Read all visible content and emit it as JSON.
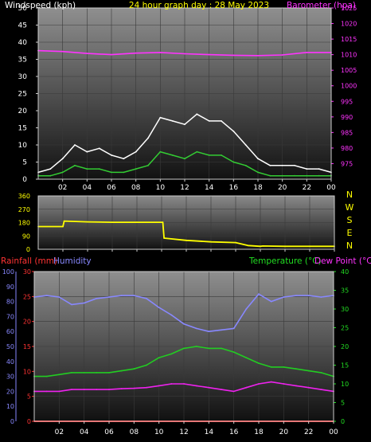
{
  "header": {
    "left_label": "Windspeed (kph)",
    "center_label": "24 hour graph day : 28 May 2023",
    "right_label": "Barometer (hpa)"
  },
  "bottom_header": {
    "rain_label": "Rainfall (mm)",
    "humidity_label": "Humidity",
    "temp_label": "Temperature (°C)",
    "dew_label": "Dew Point (°C)"
  },
  "colors": {
    "wind_gust": "#ffffff",
    "wind_avg": "#33cc33",
    "barometer": "#ff33ff",
    "direction": "#ffff00",
    "humidity": "#8888ff",
    "temperature": "#22cc22",
    "dewpoint": "#ee22ee",
    "rainfall": "#ff2222",
    "frame": "#cccccc"
  },
  "chart_data": [
    {
      "type": "line",
      "name": "wind-barometer",
      "hour_ticks": [
        "02",
        "04",
        "06",
        "08",
        "10",
        "12",
        "14",
        "16",
        "18",
        "20",
        "22",
        "00"
      ],
      "wind_axis": {
        "min": 0,
        "max": 50,
        "ticks": [
          "0",
          "5",
          "10",
          "15",
          "20",
          "25",
          "30",
          "35",
          "40",
          "45",
          "50"
        ]
      },
      "baro_axis": {
        "min": 970,
        "max": 1025,
        "ticks": [
          "975",
          "980",
          "985",
          "990",
          "995",
          "1000",
          "1005",
          "1010",
          "1015",
          "1020",
          "1025"
        ]
      },
      "series": [
        {
          "key": "wind_gust",
          "hours": [
            0,
            1,
            2,
            3,
            4,
            5,
            6,
            7,
            8,
            9,
            10,
            11,
            12,
            13,
            14,
            15,
            16,
            17,
            18,
            19,
            20,
            21,
            22,
            23,
            24
          ],
          "values": [
            2,
            3,
            6,
            10,
            8,
            9,
            7,
            6,
            8,
            12,
            18,
            17,
            16,
            19,
            17,
            17,
            14,
            10,
            6,
            4,
            4,
            4,
            3,
            3,
            2
          ]
        },
        {
          "key": "wind_avg",
          "hours": [
            0,
            1,
            2,
            3,
            4,
            5,
            6,
            7,
            8,
            9,
            10,
            11,
            12,
            13,
            14,
            15,
            16,
            17,
            18,
            19,
            20,
            21,
            22,
            23,
            24
          ],
          "values": [
            1,
            1,
            2,
            4,
            3,
            3,
            2,
            2,
            3,
            4,
            8,
            7,
            6,
            8,
            7,
            7,
            5,
            4,
            2,
            1,
            1,
            1,
            1,
            1,
            1
          ]
        },
        {
          "key": "barometer",
          "hours": [
            0,
            2,
            4,
            6,
            8,
            10,
            12,
            14,
            16,
            18,
            20,
            22,
            24
          ],
          "values": [
            1011.3,
            1011.0,
            1010.4,
            1010.0,
            1010.5,
            1010.7,
            1010.3,
            1010.0,
            1009.8,
            1009.7,
            1009.9,
            1010.7,
            1010.7
          ]
        }
      ]
    },
    {
      "type": "line",
      "name": "wind-direction",
      "hour_ticks": [
        "02",
        "04",
        "06",
        "08",
        "10",
        "12",
        "14",
        "16",
        "18",
        "20",
        "22",
        "00"
      ],
      "dir_axis": {
        "min": 0,
        "max": 360,
        "ticks": [
          "0",
          "90",
          "180",
          "270",
          "360"
        ]
      },
      "compass": [
        "N",
        "W",
        "S",
        "E",
        "N"
      ],
      "series": [
        {
          "key": "direction",
          "hours": [
            0,
            2,
            2.1,
            4,
            6,
            8,
            10.1,
            10.2,
            12,
            14,
            16,
            17,
            18,
            18.2,
            20,
            22,
            24
          ],
          "values": [
            153,
            153,
            190,
            185,
            182,
            182,
            182,
            75,
            60,
            50,
            45,
            25,
            20,
            22,
            20,
            20,
            20
          ]
        }
      ]
    },
    {
      "type": "line",
      "name": "rain-humidity-temperature",
      "hour_ticks": [
        "02",
        "04",
        "06",
        "08",
        "10",
        "12",
        "14",
        "16",
        "18",
        "20",
        "22",
        "00"
      ],
      "humidity_axis": {
        "min": 0,
        "max": 100,
        "ticks": [
          "0",
          "10",
          "20",
          "30",
          "40",
          "50",
          "60",
          "70",
          "80",
          "90",
          "100"
        ]
      },
      "rain_axis": {
        "min": 0,
        "max": 30,
        "ticks": [
          "0",
          "5",
          "10",
          "15",
          "20",
          "25",
          "30"
        ]
      },
      "temp_axis": {
        "min": 0,
        "max": 40,
        "ticks": [
          "0",
          "5",
          "10",
          "15",
          "20",
          "25",
          "30",
          "35",
          "40"
        ]
      },
      "series": [
        {
          "key": "humidity",
          "hours": [
            0,
            1,
            2,
            3,
            4,
            5,
            6,
            7,
            8,
            9,
            10,
            11,
            12,
            13,
            14,
            15,
            16,
            17,
            18,
            19,
            20,
            21,
            22,
            23,
            24
          ],
          "values": [
            83,
            84,
            83,
            78,
            79,
            82,
            83,
            84,
            84,
            82,
            76,
            71,
            65,
            62,
            60,
            61,
            62,
            75,
            85,
            80,
            83,
            84,
            84,
            83,
            84
          ]
        },
        {
          "key": "temperature",
          "hours": [
            0,
            1,
            2,
            3,
            4,
            5,
            6,
            7,
            8,
            9,
            10,
            11,
            12,
            13,
            14,
            15,
            16,
            17,
            18,
            19,
            20,
            21,
            22,
            23,
            24
          ],
          "values": [
            12,
            12,
            12.5,
            13,
            13,
            13,
            13,
            13.5,
            14,
            15,
            17,
            18,
            19.5,
            20,
            19.5,
            19.5,
            18.5,
            17,
            15.5,
            14.5,
            14.5,
            14,
            13.5,
            13,
            12
          ]
        },
        {
          "key": "dewpoint",
          "hours": [
            0,
            1,
            2,
            3,
            4,
            5,
            6,
            7,
            8,
            9,
            10,
            11,
            12,
            13,
            14,
            15,
            16,
            17,
            18,
            19,
            20,
            21,
            22,
            23,
            24
          ],
          "values": [
            8,
            8,
            8,
            8.5,
            8.5,
            8.5,
            8.5,
            8.7,
            8.8,
            9,
            9.5,
            10,
            10,
            9.5,
            9,
            8.5,
            8,
            9,
            10,
            10.5,
            10,
            9.5,
            9,
            8.5,
            8
          ]
        },
        {
          "key": "rainfall",
          "hours": [
            0,
            24
          ],
          "values": [
            0,
            0
          ]
        }
      ]
    }
  ]
}
